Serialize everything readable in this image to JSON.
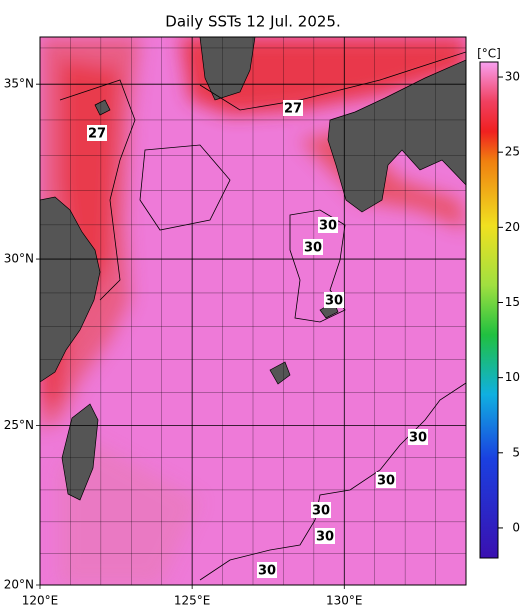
{
  "chart_data": {
    "type": "map",
    "title": "Daily SSTs 12 Jul. 2025.",
    "xlim": [
      120,
      134
    ],
    "ylim": [
      20,
      36.3
    ],
    "xticks": [
      {
        "value": 120,
        "label": "120°E"
      },
      {
        "value": 125,
        "label": "125°E"
      },
      {
        "value": 130,
        "label": "130°E"
      }
    ],
    "yticks": [
      {
        "value": 20,
        "label": "20°N"
      },
      {
        "value": 25,
        "label": "25°N"
      },
      {
        "value": 30,
        "label": "30°N"
      },
      {
        "value": 35,
        "label": "35°N"
      }
    ],
    "xgrid": [
      121,
      122,
      123,
      124,
      126,
      127,
      128,
      129,
      131,
      132,
      133
    ],
    "ygrid": [
      21,
      22,
      23,
      24,
      26,
      27,
      28,
      29,
      31,
      32,
      33,
      34,
      36
    ],
    "contour_labels": [
      27,
      27,
      30,
      30,
      30,
      30,
      30,
      30,
      30,
      30
    ],
    "colorbar": {
      "label": "[°C]",
      "lim": [
        -2,
        31
      ],
      "ticks": [
        0,
        5,
        10,
        15,
        20,
        25,
        30
      ]
    }
  }
}
